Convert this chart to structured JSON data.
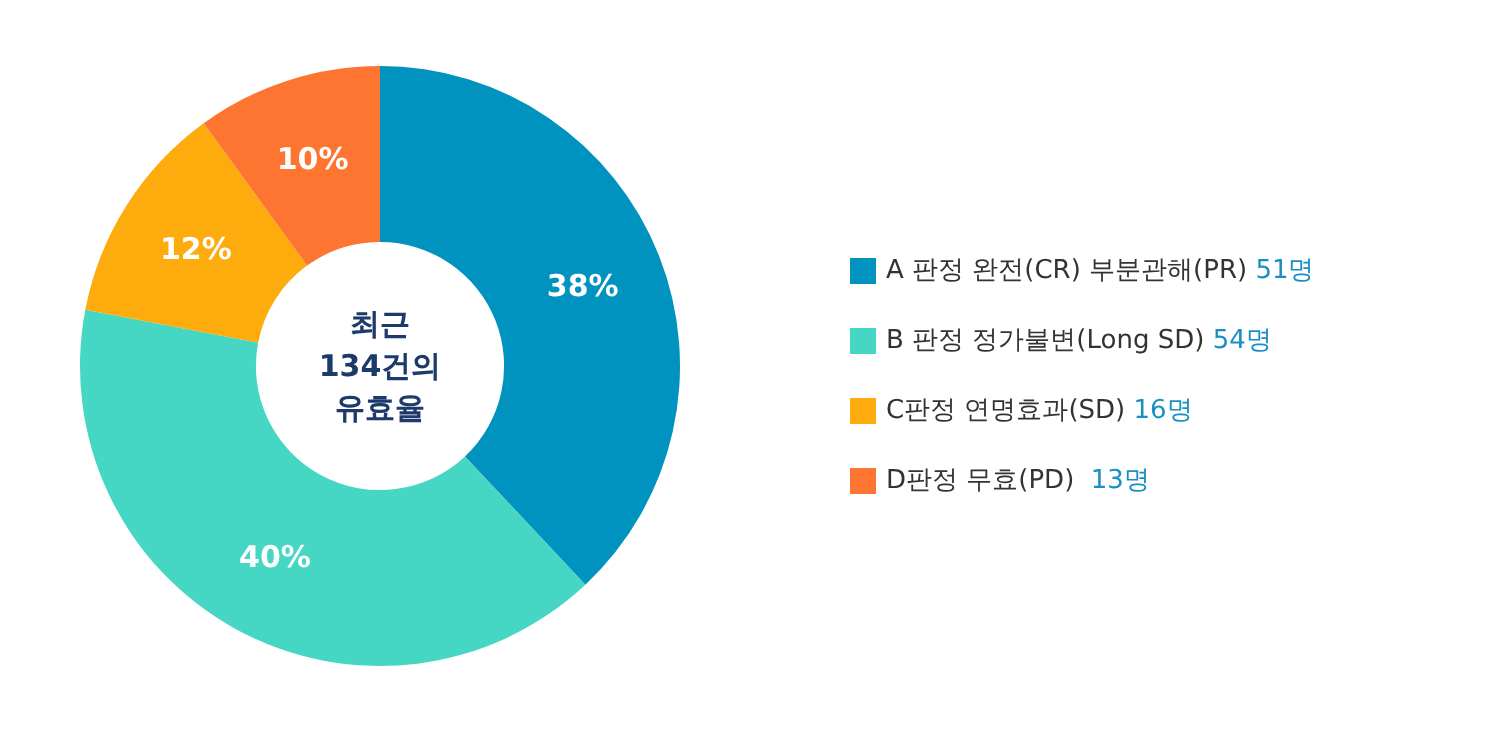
{
  "chart_data": {
    "type": "donut",
    "categories": [
      "A 판정 완전(CR) 부분관해(PR) 51명",
      "B 판정 정가불변(Long SD) 54명",
      "C판정 연명효과(SD) 16명",
      "D판정 무효(PD)  13명"
    ],
    "values": [
      38,
      40,
      12,
      10
    ],
    "value_labels": [
      "38%",
      "40%",
      "12%",
      "10%"
    ],
    "colors": [
      "#0093c0",
      "#45d6c4",
      "#fdab0d",
      "#fd7530"
    ],
    "annotations": [
      "최근 134건의 유효율"
    ],
    "legend": "right"
  }
}
